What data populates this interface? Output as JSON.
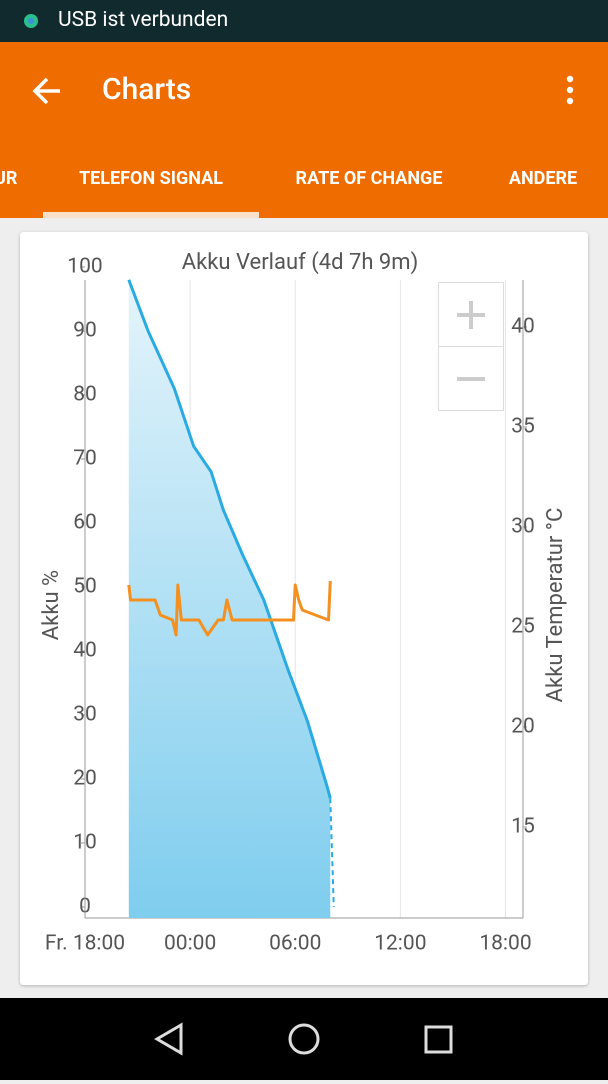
{
  "status_bar": {
    "text": "USB ist verbunden"
  },
  "app_bar": {
    "title": "Charts"
  },
  "tabs": [
    "UR",
    "TELEFON SIGNAL",
    "RATE OF CHANGE",
    "ANDERE"
  ],
  "chart_data": {
    "type": "line",
    "title": "Akku Verlauf (4d 7h 9m)",
    "ylabel": "Akku %",
    "y2label": "Akku Temperatur °C",
    "xlim": [
      0,
      25
    ],
    "xticks": [
      {
        "value": 0,
        "label": "Fr. 18:00"
      },
      {
        "value": 6,
        "label": "00:00"
      },
      {
        "value": 12,
        "label": "06:00"
      },
      {
        "value": 18,
        "label": "12:00"
      },
      {
        "value": 24,
        "label": "18:00"
      }
    ],
    "ylim": [
      0,
      100
    ],
    "yticks": [
      0,
      10,
      20,
      30,
      40,
      50,
      60,
      70,
      80,
      90,
      100
    ],
    "y2lim": [
      11,
      43
    ],
    "y2ticks": [
      15,
      20,
      25,
      30,
      35,
      40
    ],
    "grid": true,
    "series": [
      {
        "color": "#29abe2",
        "area": true,
        "x": [
          2.5,
          3.6,
          5.1,
          6.2,
          7.2,
          7.9,
          9.0,
          10.2,
          11.6,
          12.7,
          13.8,
          14.0
        ],
        "values": [
          98,
          90,
          81,
          72,
          68,
          62,
          55,
          48,
          37,
          29,
          19,
          17
        ]
      },
      {
        "color": "#29abe2",
        "dashed": true,
        "x": [
          14.0,
          14.2
        ],
        "values": [
          17,
          0
        ]
      },
      {
        "color": "#f39020",
        "axis": "y2",
        "x": [
          2.5,
          2.6,
          4.0,
          4.3,
          5.0,
          5.2,
          5.3,
          5.5,
          6.5,
          7.0,
          7.6,
          7.9,
          8.1,
          8.4,
          11.9,
          12.0,
          12.2,
          12.4,
          13.9,
          14.0
        ],
        "values": [
          27.1,
          26.35,
          26.35,
          25.6,
          25.35,
          24.6,
          27.1,
          25.35,
          25.35,
          24.6,
          25.35,
          25.35,
          26.35,
          25.35,
          25.35,
          27.1,
          26.35,
          25.85,
          25.35,
          27.3
        ]
      }
    ]
  }
}
